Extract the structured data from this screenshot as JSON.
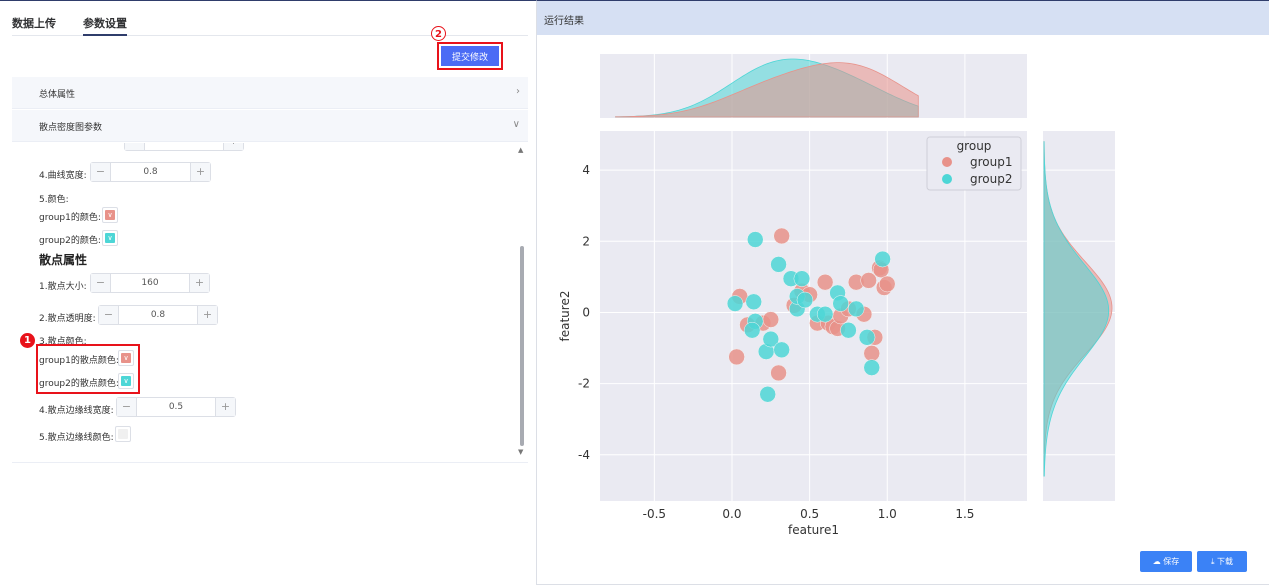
{
  "tabs": {
    "upload": "数据上传",
    "params": "参数设置"
  },
  "submit_label": "提交修改",
  "badges": {
    "one": "1",
    "two": "2"
  },
  "panels": {
    "overall": "总体属性",
    "scatter_density": "散点密度图参数"
  },
  "params": {
    "line_width_label": "4.曲线宽度:",
    "line_width_value": "0.8",
    "color_label": "5.颜色:",
    "group1_color_label": "group1的颜色:",
    "group2_color_label": "group2的颜色:",
    "scatter_section": "散点属性",
    "size_label": "1.散点大小:",
    "size_value": "160",
    "alpha_label": "2.散点透明度:",
    "alpha_value": "0.8",
    "scatter_color_label": "3.散点颜色:",
    "group1_scatter_color_label": "group1的散点颜色:",
    "group2_scatter_color_label": "group2的散点颜色:",
    "edge_width_label": "4.散点边缘线宽度:",
    "edge_width_value": "0.5",
    "edge_color_label": "5.散点边缘线颜色:"
  },
  "colors": {
    "group1": "#e8928a",
    "group2": "#4dd6d6",
    "edge": "#f0f0f0",
    "accent": "#4b6cf5",
    "highlight": "#e8121a"
  },
  "results_title": "运行结果",
  "buttons": {
    "save": "保存",
    "download": "下载"
  },
  "chart_data": {
    "type": "scatter",
    "xlabel": "feature1",
    "ylabel": "feature2",
    "xlim": [
      -0.85,
      1.9
    ],
    "ylim": [
      -5.3,
      5.1
    ],
    "xticks": [
      "-0.5",
      "0.0",
      "0.5",
      "1.0",
      "1.5"
    ],
    "xtick_values": [
      -0.5,
      0.0,
      0.5,
      1.0,
      1.5
    ],
    "yticks": [
      "-4",
      "-2",
      "0",
      "2",
      "4"
    ],
    "ytick_values": [
      -4,
      -2,
      0,
      2,
      4
    ],
    "legend": {
      "title": "group",
      "placement": "top-right"
    },
    "grid": true,
    "series": [
      {
        "name": "group1",
        "color": "#e8928a",
        "points": [
          [
            0.03,
            -1.25
          ],
          [
            0.05,
            0.45
          ],
          [
            0.1,
            -0.35
          ],
          [
            0.2,
            -0.3
          ],
          [
            0.25,
            -0.2
          ],
          [
            0.32,
            2.15
          ],
          [
            0.3,
            -1.7
          ],
          [
            0.4,
            0.2
          ],
          [
            0.45,
            0.6
          ],
          [
            0.5,
            0.5
          ],
          [
            0.55,
            -0.3
          ],
          [
            0.6,
            0.85
          ],
          [
            0.62,
            -0.3
          ],
          [
            0.65,
            -0.4
          ],
          [
            0.68,
            -0.45
          ],
          [
            0.7,
            -0.1
          ],
          [
            0.75,
            0.1
          ],
          [
            0.8,
            0.85
          ],
          [
            0.85,
            -0.05
          ],
          [
            0.88,
            0.9
          ],
          [
            0.9,
            -1.15
          ],
          [
            0.92,
            -0.7
          ],
          [
            0.95,
            1.25
          ],
          [
            0.96,
            1.2
          ],
          [
            0.98,
            0.7
          ],
          [
            1.0,
            0.8
          ]
        ]
      },
      {
        "name": "group2",
        "color": "#4dd6d6",
        "points": [
          [
            0.02,
            0.25
          ],
          [
            0.15,
            2.05
          ],
          [
            0.14,
            0.3
          ],
          [
            0.15,
            -0.25
          ],
          [
            0.13,
            -0.5
          ],
          [
            0.22,
            -1.1
          ],
          [
            0.23,
            -2.3
          ],
          [
            0.25,
            -0.75
          ],
          [
            0.3,
            1.35
          ],
          [
            0.32,
            -1.05
          ],
          [
            0.38,
            0.95
          ],
          [
            0.42,
            0.1
          ],
          [
            0.42,
            0.45
          ],
          [
            0.45,
            0.95
          ],
          [
            0.47,
            0.35
          ],
          [
            0.55,
            -0.05
          ],
          [
            0.6,
            -0.05
          ],
          [
            0.68,
            0.55
          ],
          [
            0.7,
            0.25
          ],
          [
            0.75,
            -0.5
          ],
          [
            0.8,
            0.1
          ],
          [
            0.87,
            -0.7
          ],
          [
            0.9,
            -1.55
          ],
          [
            0.97,
            1.5
          ]
        ]
      }
    ]
  }
}
